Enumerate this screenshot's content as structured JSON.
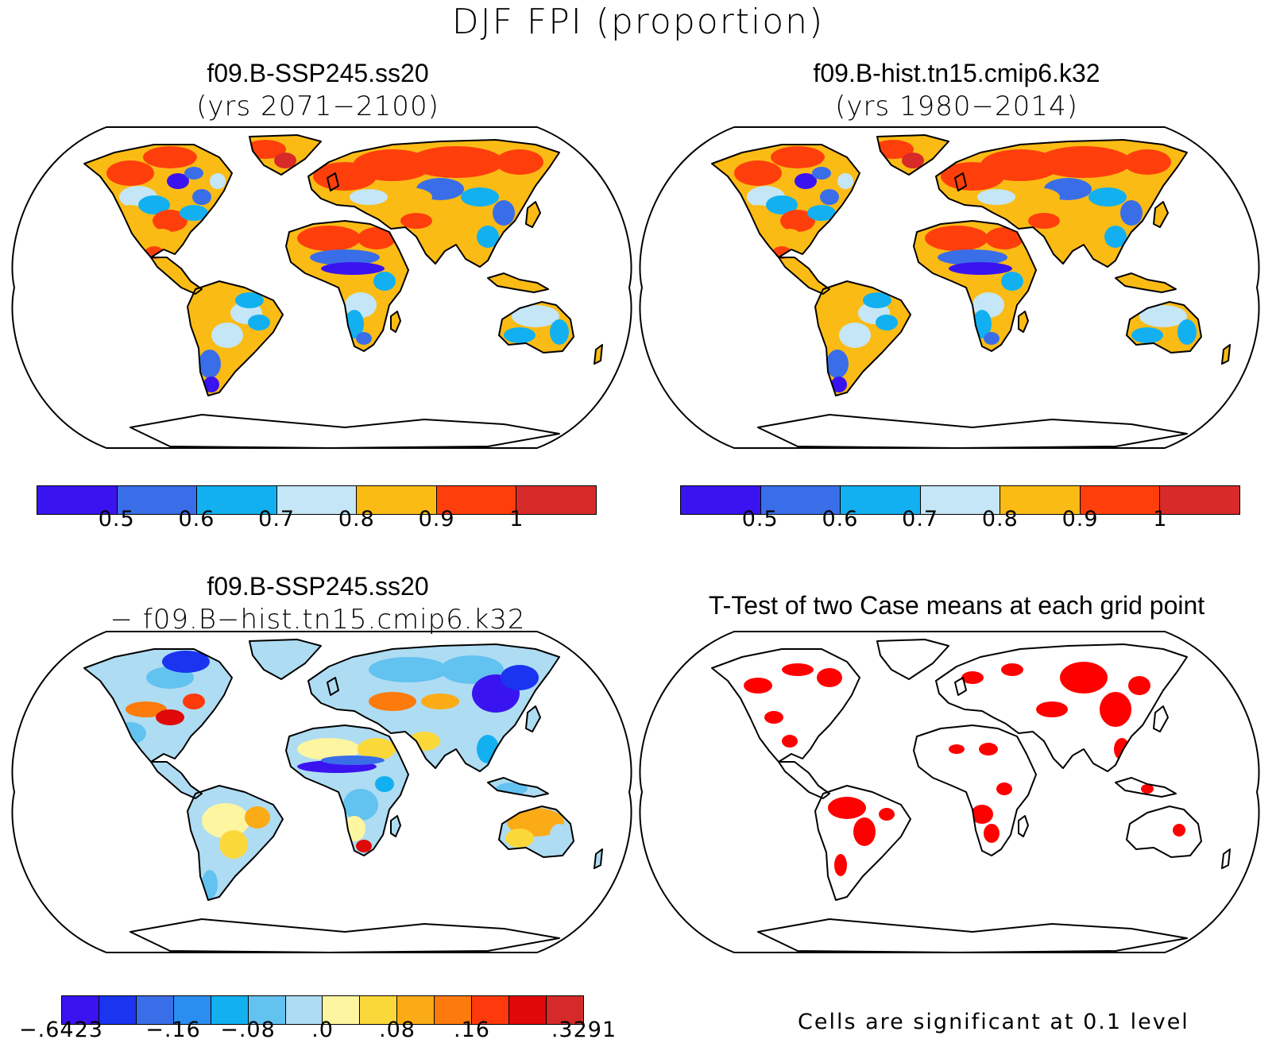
{
  "title": "DJF FPI (proportion)",
  "panels": {
    "top_left": {
      "title_line1": "f09.B-SSP245.ss20",
      "title_line2": "(yrs 2071−2100)"
    },
    "top_right": {
      "title_line1": "f09.B-hist.tn15.cmip6.k32",
      "title_line2": "(yrs 1980−2014)"
    },
    "bottom_left": {
      "title_line1": "f09.B-SSP245.ss20",
      "title_line2": "− f09.B−hist.tn15.cmip6.k32"
    },
    "bottom_right": {
      "title_line1": "T-Test of two Case means at each grid point"
    }
  },
  "colorbars": {
    "fpi": {
      "colors": [
        "#3a14f0",
        "#3a6ee8",
        "#12b0f0",
        "#c4e6f6",
        "#fbbb15",
        "#fe3f0c",
        "#d92a2a"
      ],
      "labels": [
        "0.5",
        "0.6",
        "0.7",
        "0.8",
        "0.9",
        "1"
      ]
    },
    "diff": {
      "colors": [
        "#3a14f0",
        "#1a34f0",
        "#3a6ee8",
        "#2a8ef0",
        "#12b0f0",
        "#62c2f0",
        "#aedcf2",
        "#fdf5a0",
        "#fbd83a",
        "#fbab15",
        "#fd7a0c",
        "#fe3a0c",
        "#e00808",
        "#d42a2a"
      ],
      "labels": [
        "−.6423",
        "−.16",
        "−.08",
        ".0",
        ".08",
        ".16",
        ".3291"
      ]
    }
  },
  "significance_note": "Cells are significant at 0.1 level",
  "significance_color": "#ff0000"
}
